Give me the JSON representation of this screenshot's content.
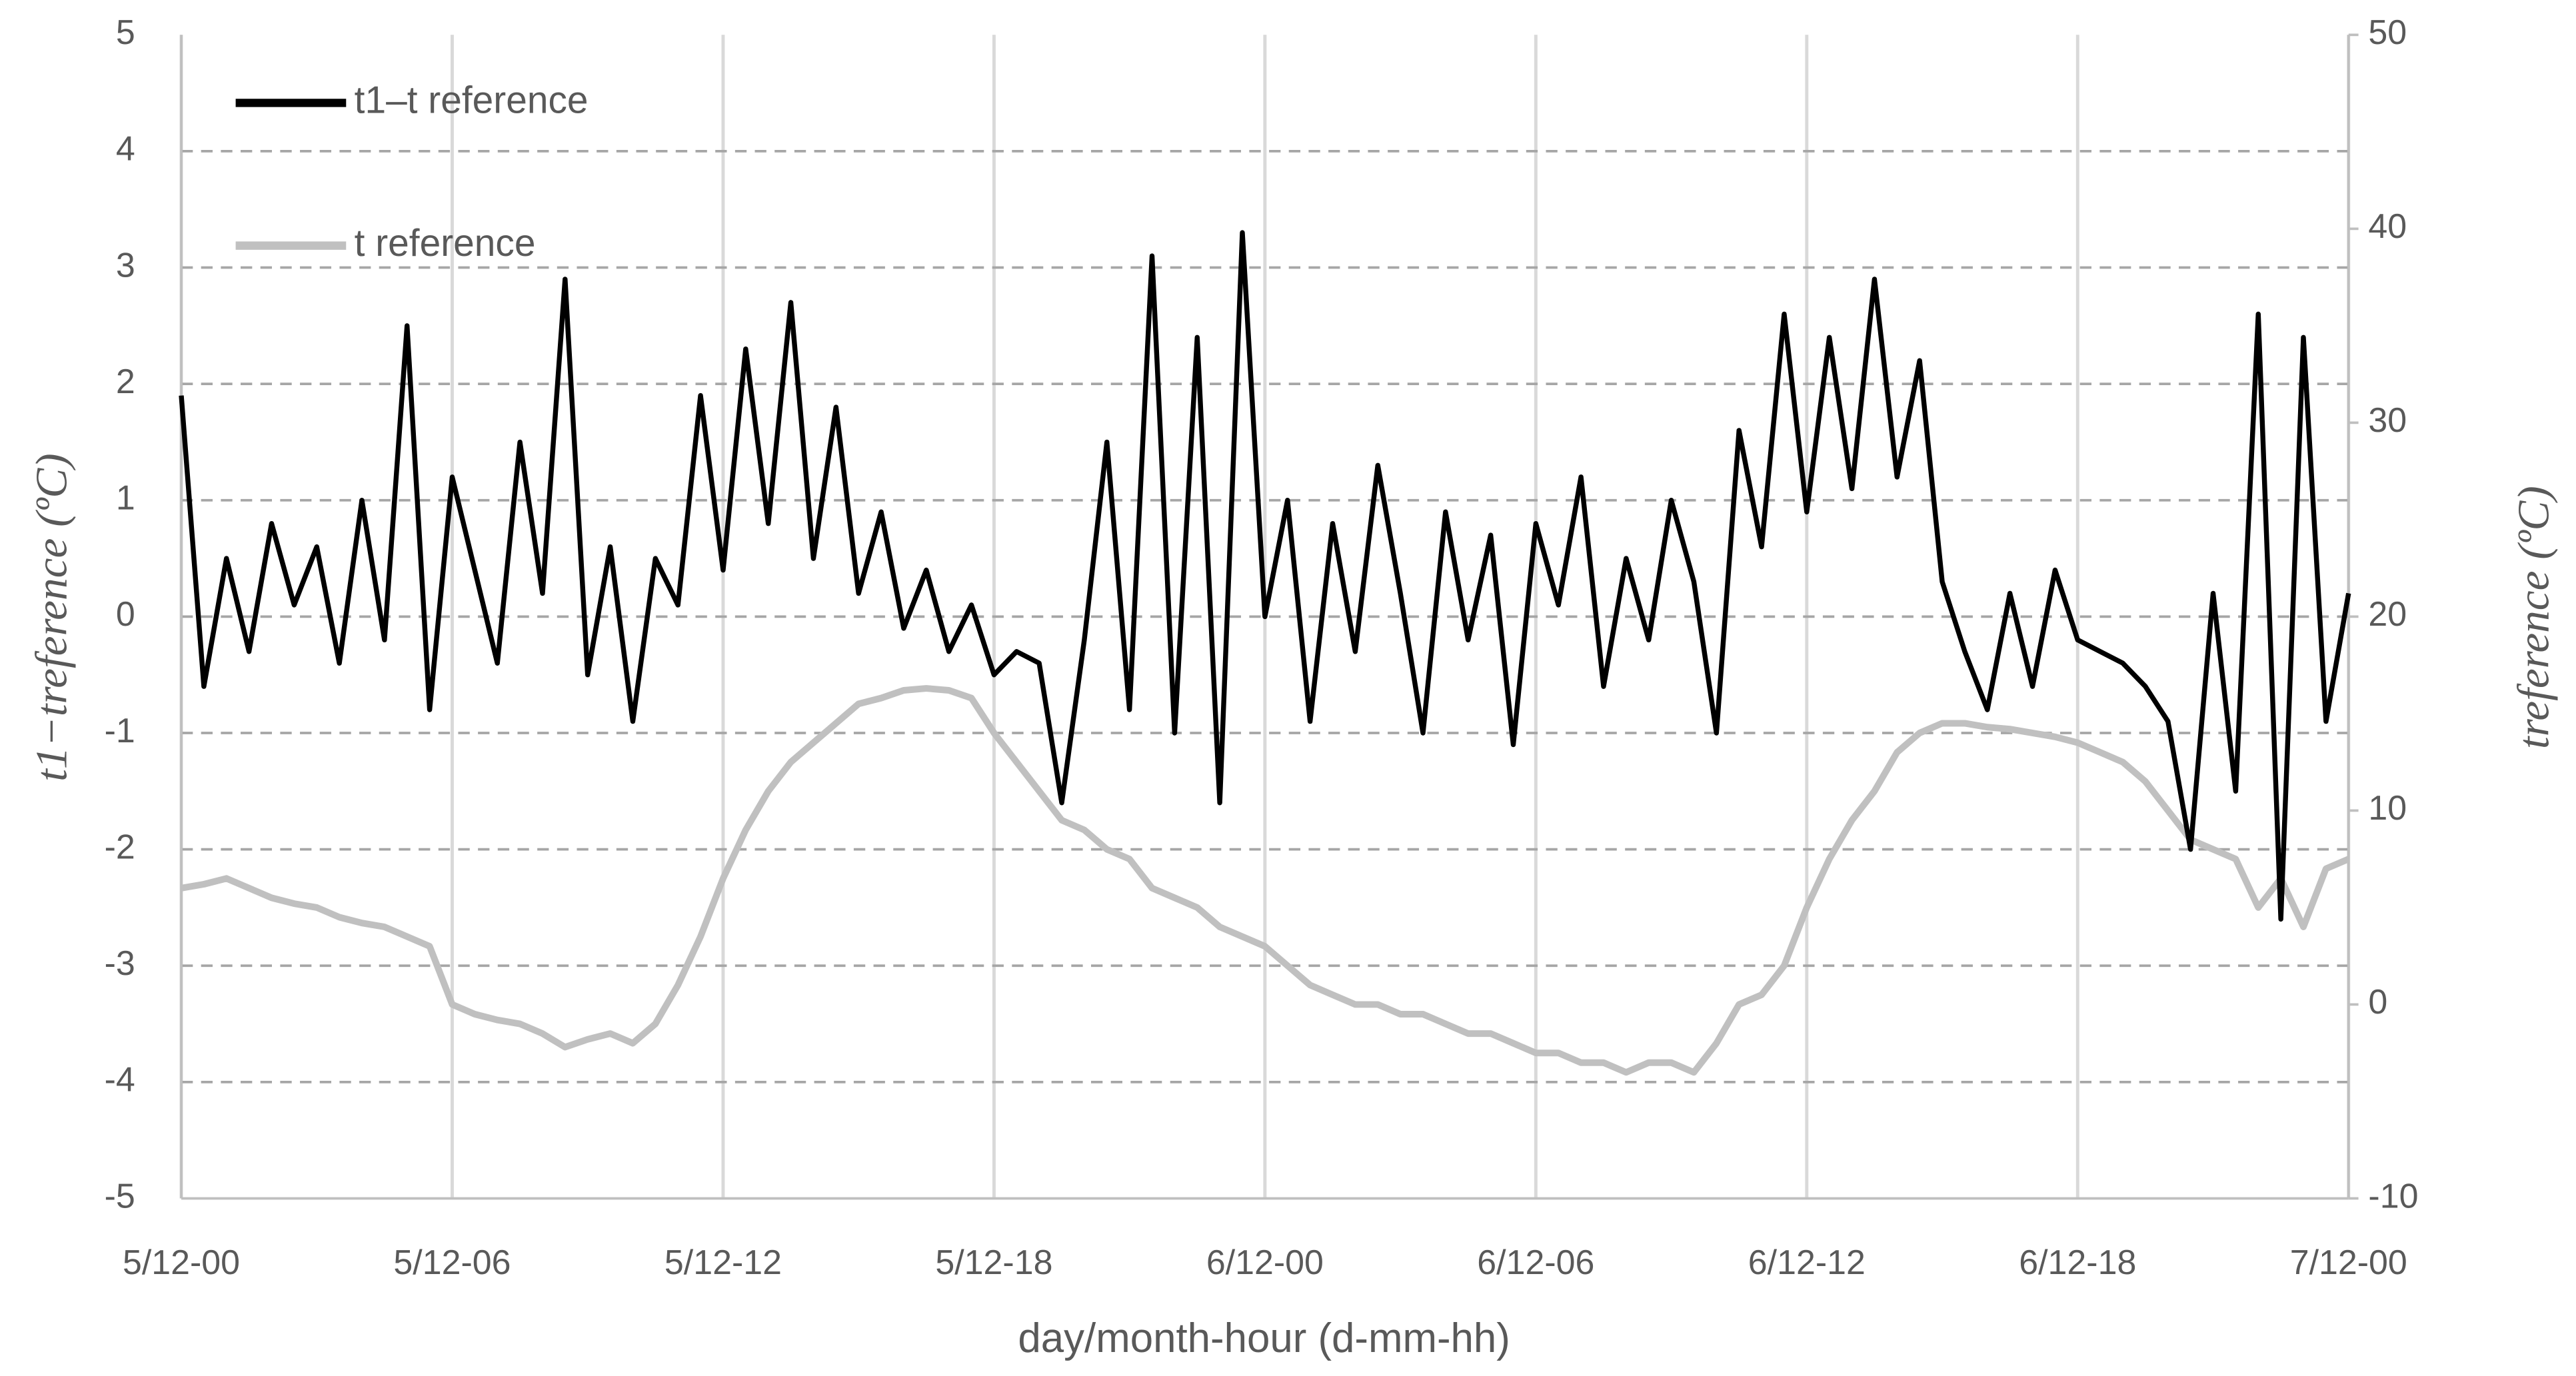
{
  "chart_data": {
    "type": "line",
    "x_label": "day/month-hour (d-mm-hh)",
    "y_label": "t1−treference (ºC)",
    "y2_label": "treference (ºC)",
    "x": [
      0,
      0.5,
      1,
      1.5,
      2,
      2.5,
      3,
      3.5,
      4,
      4.5,
      5,
      5.5,
      6,
      6.5,
      7,
      7.5,
      8,
      8.5,
      9,
      9.5,
      10,
      10.5,
      11,
      11.5,
      12,
      12.5,
      13,
      13.5,
      14,
      14.5,
      15,
      15.5,
      16,
      16.5,
      17,
      17.5,
      18,
      18.5,
      19,
      19.5,
      20,
      20.5,
      21,
      21.5,
      22,
      22.5,
      23,
      23.5,
      24,
      24.5,
      25,
      25.5,
      26,
      26.5,
      27,
      27.5,
      28,
      28.5,
      29,
      29.5,
      30,
      30.5,
      31,
      31.5,
      32,
      32.5,
      33,
      33.5,
      34,
      34.5,
      35,
      35.5,
      36,
      36.5,
      37,
      37.5,
      38,
      38.5,
      39,
      39.5,
      40,
      40.5,
      41,
      41.5,
      42,
      42.5,
      43,
      43.5,
      44,
      44.5,
      45,
      45.5,
      46,
      46.5,
      47,
      47.5,
      48
    ],
    "xlim": [
      0,
      48
    ],
    "xticks": [
      {
        "value": 0,
        "label": "5/12-00"
      },
      {
        "value": 6,
        "label": "5/12-06"
      },
      {
        "value": 12,
        "label": "5/12-12"
      },
      {
        "value": 18,
        "label": "5/12-18"
      },
      {
        "value": 24,
        "label": "6/12-00"
      },
      {
        "value": 30,
        "label": "6/12-06"
      },
      {
        "value": 36,
        "label": "6/12-12"
      },
      {
        "value": 42,
        "label": "6/12-18"
      },
      {
        "value": 48,
        "label": "7/12-00"
      }
    ],
    "ylim": [
      -5,
      5
    ],
    "yticks": [
      -5,
      -4,
      -3,
      -2,
      -1,
      0,
      1,
      2,
      3,
      4,
      5
    ],
    "y2lim": [
      -10,
      50
    ],
    "y2ticks": [
      -10,
      0,
      10,
      20,
      30,
      40,
      50
    ],
    "grid": true,
    "legend": "top-left",
    "series": [
      {
        "name": "t1–t reference",
        "color": "#000000",
        "values": [
          1.9,
          -0.6,
          0.5,
          -0.3,
          0.8,
          0.1,
          0.6,
          -0.4,
          1.0,
          -0.2,
          2.5,
          -0.8,
          1.2,
          0.4,
          -0.4,
          1.5,
          0.2,
          2.9,
          -0.5,
          0.6,
          -0.9,
          0.5,
          0.1,
          1.9,
          0.4,
          2.3,
          0.8,
          2.7,
          0.5,
          1.8,
          0.2,
          0.9,
          -0.1,
          0.4,
          -0.3,
          0.1,
          -0.5,
          -0.3,
          -0.4,
          -1.6,
          -0.2,
          1.5,
          -0.8,
          3.1,
          -1.0,
          2.4,
          -1.6,
          3.3,
          0.0,
          1.0,
          -0.9,
          0.8,
          -0.3,
          1.3,
          0.2,
          -1.0,
          0.9,
          -0.2,
          0.7,
          -1.1,
          0.8,
          0.1,
          1.2,
          -0.6,
          0.5,
          -0.2,
          1.0,
          0.3,
          -1.0,
          1.6,
          0.6,
          2.6,
          0.9,
          2.4,
          1.1,
          2.9,
          1.2,
          2.2,
          0.3,
          -0.3,
          -0.8,
          0.2,
          -0.6,
          0.4,
          -0.2,
          -0.3,
          -0.4,
          -0.6,
          -0.9,
          -2.0,
          0.2,
          -1.5,
          2.6,
          -2.6,
          2.4,
          -0.9,
          0.2
        ]
      },
      {
        "name": "t reference",
        "color": "#c0c0c0",
        "axis": "y2",
        "values": [
          6,
          6.2,
          6.5,
          6,
          5.5,
          5.2,
          5,
          4.5,
          4.2,
          4,
          3.5,
          3,
          0,
          -0.5,
          -0.8,
          -1,
          -1.5,
          -2.2,
          -1.8,
          -1.5,
          -2,
          -1,
          1,
          3.5,
          6.5,
          9,
          11,
          12.5,
          13.5,
          14.5,
          15.5,
          15.8,
          16.2,
          16.3,
          16.2,
          15.8,
          14,
          12.5,
          11,
          9.5,
          9,
          8,
          7.5,
          6,
          5.5,
          5,
          4,
          3.5,
          3,
          2,
          1,
          0.5,
          0,
          0,
          -0.5,
          -0.5,
          -1,
          -1.5,
          -1.5,
          -2,
          -2.5,
          -2.5,
          -3,
          -3,
          -3.5,
          -3,
          -3,
          -3.5,
          -2,
          0,
          0.5,
          2,
          5,
          7.5,
          9.5,
          11,
          13,
          14,
          14.5,
          14.5,
          14.3,
          14.2,
          14,
          13.8,
          13.5,
          13,
          12.5,
          11.5,
          10,
          8.5,
          8,
          7.5,
          5,
          6.5,
          4,
          7,
          7.5
        ]
      }
    ]
  }
}
